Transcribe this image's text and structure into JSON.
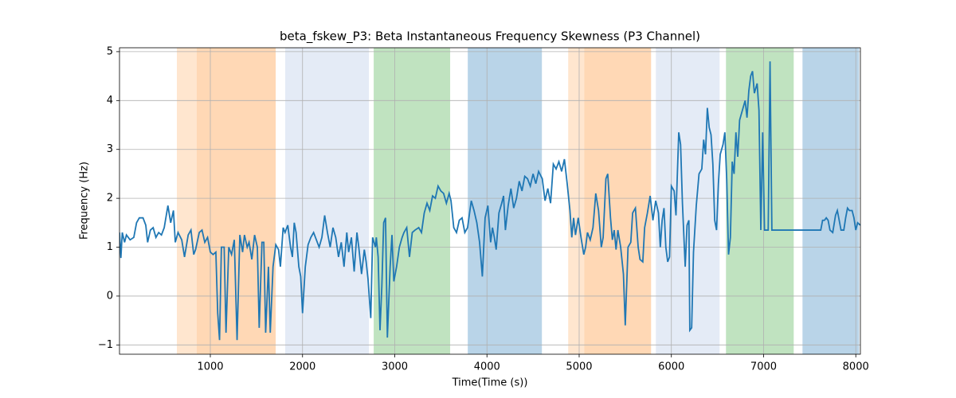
{
  "chart_data": {
    "type": "line",
    "title": "beta_fskew_P3: Beta Instantaneous Frequency Skewness (P3 Channel)",
    "x_label": "Time(Time (s))",
    "y_label": "Frequency (Hz)",
    "xlim": [
      15,
      8050
    ],
    "ylim": [
      -1.19,
      5.08
    ],
    "xticks": [
      1000,
      2000,
      3000,
      4000,
      5000,
      6000,
      7000,
      8000
    ],
    "yticks": [
      {
        "value": -1,
        "label": "−1"
      },
      0,
      1,
      2,
      3,
      4,
      5
    ],
    "grid": true,
    "spans": [
      {
        "start": 637,
        "end": 853,
        "color": "#ffe6cf"
      },
      {
        "start": 853,
        "end": 1709,
        "color": "#ffd8b5"
      },
      {
        "start": 1812,
        "end": 2720,
        "color": "#e4ebf6"
      },
      {
        "start": 2772,
        "end": 3601,
        "color": "#c0e3c0"
      },
      {
        "start": 3792,
        "end": 4596,
        "color": "#b9d4e8"
      },
      {
        "start": 4881,
        "end": 5054,
        "color": "#ffe6cf"
      },
      {
        "start": 5054,
        "end": 5780,
        "color": "#ffd8b5"
      },
      {
        "start": 5832,
        "end": 6523,
        "color": "#e4ebf6"
      },
      {
        "start": 6592,
        "end": 7327,
        "color": "#c0e3c0"
      },
      {
        "start": 7422,
        "end": 8036,
        "color": "#b9d4e8"
      }
    ],
    "x": [
      15,
      30,
      45,
      70,
      90,
      130,
      170,
      200,
      230,
      270,
      300,
      320,
      350,
      380,
      410,
      440,
      470,
      500,
      540,
      570,
      600,
      620,
      650,
      690,
      720,
      760,
      790,
      820,
      840,
      880,
      910,
      940,
      970,
      1000,
      1030,
      1060,
      1080,
      1100,
      1120,
      1150,
      1170,
      1200,
      1230,
      1260,
      1290,
      1320,
      1350,
      1370,
      1400,
      1420,
      1450,
      1480,
      1510,
      1530,
      1560,
      1580,
      1600,
      1630,
      1650,
      1680,
      1710,
      1740,
      1760,
      1790,
      1810,
      1840,
      1870,
      1890,
      1910,
      1930,
      1960,
      1980,
      2000,
      2030,
      2060,
      2090,
      2120,
      2150,
      2180,
      2210,
      2240,
      2270,
      2300,
      2330,
      2360,
      2390,
      2420,
      2450,
      2480,
      2500,
      2530,
      2560,
      2590,
      2610,
      2640,
      2670,
      2690,
      2710,
      2740,
      2760,
      2790,
      2800,
      2820,
      2840,
      2860,
      2880,
      2900,
      2920,
      2950,
      2970,
      2990,
      3020,
      3050,
      3080,
      3100,
      3130,
      3160,
      3190,
      3220,
      3260,
      3290,
      3320,
      3350,
      3380,
      3410,
      3440,
      3470,
      3500,
      3530,
      3560,
      3590,
      3610,
      3640,
      3670,
      3700,
      3730,
      3760,
      3790,
      3830,
      3860,
      3890,
      3920,
      3950,
      3980,
      4010,
      4040,
      4060,
      4080,
      4100,
      4130,
      4160,
      4180,
      4200,
      4230,
      4260,
      4290,
      4320,
      4350,
      4380,
      4410,
      4440,
      4470,
      4500,
      4530,
      4560,
      4600,
      4630,
      4660,
      4690,
      4720,
      4750,
      4780,
      4810,
      4840,
      4870,
      4900,
      4920,
      4940,
      4960,
      4990,
      5020,
      5050,
      5070,
      5090,
      5120,
      5150,
      5180,
      5210,
      5240,
      5260,
      5290,
      5310,
      5340,
      5360,
      5380,
      5400,
      5420,
      5450,
      5480,
      5500,
      5530,
      5560,
      5580,
      5610,
      5640,
      5660,
      5690,
      5710,
      5740,
      5770,
      5800,
      5830,
      5860,
      5880,
      5900,
      5920,
      5940,
      5960,
      5980,
      6000,
      6030,
      6050,
      6080,
      6100,
      6120,
      6150,
      6170,
      6190,
      6200,
      6220,
      6240,
      6270,
      6300,
      6330,
      6350,
      6370,
      6390,
      6410,
      6430,
      6450,
      6470,
      6490,
      6510,
      6530,
      6560,
      6580,
      6600,
      6620,
      6640,
      6660,
      6680,
      6700,
      6720,
      6740,
      6770,
      6800,
      6820,
      6840,
      6860,
      6880,
      6900,
      6930,
      6950,
      6970,
      6990,
      7010,
      7050,
      7070,
      7090,
      7150,
      7500,
      7620,
      7640,
      7660,
      7680,
      7700,
      7720,
      7750,
      7780,
      7800,
      7820,
      7840,
      7870,
      7890,
      7910,
      7930,
      7960,
      7980,
      8000,
      8020,
      8050
    ],
    "series": [
      {
        "name": "beta_fskew_P3",
        "color": "#1f77b4",
        "values": [
          1.3,
          0.78,
          1.3,
          1.1,
          1.25,
          1.15,
          1.2,
          1.5,
          1.6,
          1.6,
          1.45,
          1.1,
          1.35,
          1.4,
          1.2,
          1.3,
          1.25,
          1.4,
          1.85,
          1.5,
          1.75,
          1.1,
          1.3,
          1.15,
          0.8,
          1.25,
          1.35,
          0.85,
          0.95,
          1.3,
          1.35,
          1.1,
          1.2,
          0.9,
          0.85,
          0.9,
          -0.35,
          -0.9,
          1.0,
          1.0,
          -0.75,
          1.0,
          0.85,
          1.15,
          -0.9,
          1.25,
          0.9,
          1.25,
          1.0,
          1.1,
          0.75,
          1.25,
          1.0,
          -0.65,
          1.1,
          1.1,
          -0.75,
          0.6,
          -0.75,
          0.6,
          1.05,
          0.95,
          0.6,
          1.4,
          1.3,
          1.45,
          1.0,
          0.8,
          1.5,
          1.3,
          0.6,
          0.4,
          -0.35,
          0.6,
          1.05,
          1.2,
          1.3,
          1.15,
          1.0,
          1.2,
          1.65,
          1.3,
          1.0,
          1.4,
          1.2,
          0.8,
          1.1,
          0.6,
          1.3,
          0.9,
          1.2,
          0.5,
          1.3,
          1.0,
          0.45,
          0.95,
          0.7,
          0.35,
          -0.45,
          1.2,
          1.0,
          1.2,
          0.8,
          -0.7,
          0.2,
          1.5,
          1.6,
          -0.85,
          0.6,
          1.25,
          0.3,
          0.6,
          1.0,
          1.2,
          1.3,
          1.4,
          0.8,
          1.3,
          1.35,
          1.4,
          1.3,
          1.7,
          1.9,
          1.75,
          2.05,
          2.0,
          2.25,
          2.15,
          2.1,
          1.9,
          2.1,
          1.95,
          1.4,
          1.3,
          1.55,
          1.6,
          1.3,
          1.4,
          1.95,
          1.75,
          1.5,
          1.1,
          0.4,
          1.6,
          1.85,
          1.1,
          1.4,
          1.2,
          0.95,
          1.7,
          1.9,
          2.05,
          1.35,
          1.85,
          2.2,
          1.8,
          2.0,
          2.35,
          2.15,
          2.45,
          2.4,
          2.25,
          2.5,
          2.3,
          2.55,
          2.4,
          1.95,
          2.2,
          1.9,
          2.7,
          2.6,
          2.75,
          2.55,
          2.8,
          2.3,
          1.75,
          1.2,
          1.6,
          1.25,
          1.6,
          1.2,
          0.85,
          1.0,
          1.3,
          1.15,
          1.4,
          2.1,
          1.75,
          1.0,
          1.2,
          2.4,
          2.5,
          1.6,
          1.15,
          1.35,
          0.95,
          1.35,
          1.0,
          0.45,
          -0.6,
          1.0,
          1.1,
          1.7,
          1.8,
          1.0,
          0.75,
          0.7,
          1.4,
          1.7,
          2.05,
          1.55,
          1.95,
          1.7,
          1.0,
          1.55,
          1.8,
          1.0,
          0.7,
          0.8,
          2.25,
          2.15,
          1.65,
          3.35,
          3.1,
          1.9,
          0.6,
          1.45,
          1.55,
          -0.7,
          -0.65,
          0.9,
          1.85,
          2.5,
          2.6,
          3.2,
          2.9,
          3.85,
          3.45,
          3.3,
          2.7,
          1.55,
          1.35,
          2.3,
          2.9,
          3.1,
          3.35,
          2.4,
          0.85,
          1.2,
          2.75,
          2.5,
          3.35,
          2.85,
          3.6,
          3.8,
          4.0,
          3.65,
          4.2,
          4.5,
          4.6,
          4.15,
          4.35,
          3.8,
          1.35,
          3.35,
          1.35,
          1.35,
          4.8,
          1.35,
          1.35,
          1.35,
          1.35,
          1.55,
          1.55,
          1.6,
          1.55,
          1.35,
          1.3,
          1.65,
          1.75,
          1.55,
          1.35,
          1.35,
          1.6,
          1.8,
          1.75,
          1.75,
          1.6,
          1.35,
          1.5,
          1.45
        ]
      }
    ]
  }
}
